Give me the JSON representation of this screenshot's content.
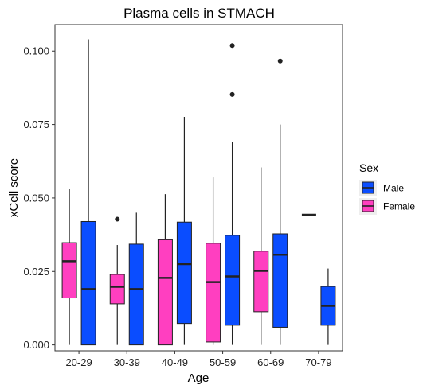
{
  "chart_data": {
    "type": "boxplot",
    "title": "Plasma cells in STMACH",
    "xlabel": "Age",
    "ylabel": "xCell score",
    "categories": [
      "20-29",
      "30-39",
      "40-49",
      "50-59",
      "60-69",
      "70-79"
    ],
    "ylim": [
      -0.002,
      0.109
    ],
    "yticks": [
      "0.000",
      "0.025",
      "0.050",
      "0.075",
      "0.100"
    ],
    "ytick_values": [
      0,
      0.025,
      0.05,
      0.075,
      0.1
    ],
    "grid": false,
    "legend": {
      "title": "Sex",
      "position": "right",
      "entries": [
        {
          "name": "Male",
          "color": "#0a4dff"
        },
        {
          "name": "Female",
          "color": "#ff3fc0"
        }
      ]
    },
    "series": [
      {
        "name": "Female",
        "color": "#ff3fc0",
        "boxes": [
          {
            "min": 0.0,
            "q1": 0.016,
            "median": 0.0285,
            "q3": 0.0348,
            "max": 0.053,
            "outliers": []
          },
          {
            "min": 0.0,
            "q1": 0.014,
            "median": 0.0198,
            "q3": 0.024,
            "max": 0.034,
            "outliers": [
              0.0428
            ]
          },
          {
            "min": 0.0,
            "q1": 0.0,
            "median": 0.0228,
            "q3": 0.0358,
            "max": 0.0513,
            "outliers": []
          },
          {
            "min": 0.0,
            "q1": 0.001,
            "median": 0.0214,
            "q3": 0.0346,
            "max": 0.057,
            "outliers": []
          },
          {
            "min": 0.0,
            "q1": 0.0113,
            "median": 0.0252,
            "q3": 0.0319,
            "max": 0.0604,
            "outliers": []
          },
          {
            "min": 0.0443,
            "q1": 0.0443,
            "median": 0.0443,
            "q3": 0.0443,
            "max": 0.0443,
            "outliers": []
          }
        ]
      },
      {
        "name": "Male",
        "color": "#0a4dff",
        "boxes": [
          {
            "min": 0.0,
            "q1": 0.0,
            "median": 0.019,
            "q3": 0.042,
            "max": 0.104,
            "outliers": []
          },
          {
            "min": 0.0,
            "q1": 0.0,
            "median": 0.019,
            "q3": 0.0343,
            "max": 0.045,
            "outliers": []
          },
          {
            "min": 0.0,
            "q1": 0.0073,
            "median": 0.0275,
            "q3": 0.0418,
            "max": 0.0776,
            "outliers": []
          },
          {
            "min": 0.0,
            "q1": 0.0067,
            "median": 0.0233,
            "q3": 0.0373,
            "max": 0.069,
            "outliers": [
              0.1019,
              0.0852
            ]
          },
          {
            "min": 0.0,
            "q1": 0.006,
            "median": 0.0307,
            "q3": 0.0378,
            "max": 0.075,
            "outliers": [
              0.0966
            ]
          },
          {
            "min": 0.0,
            "q1": 0.0067,
            "median": 0.0133,
            "q3": 0.0199,
            "max": 0.026,
            "outliers": []
          }
        ]
      }
    ]
  }
}
